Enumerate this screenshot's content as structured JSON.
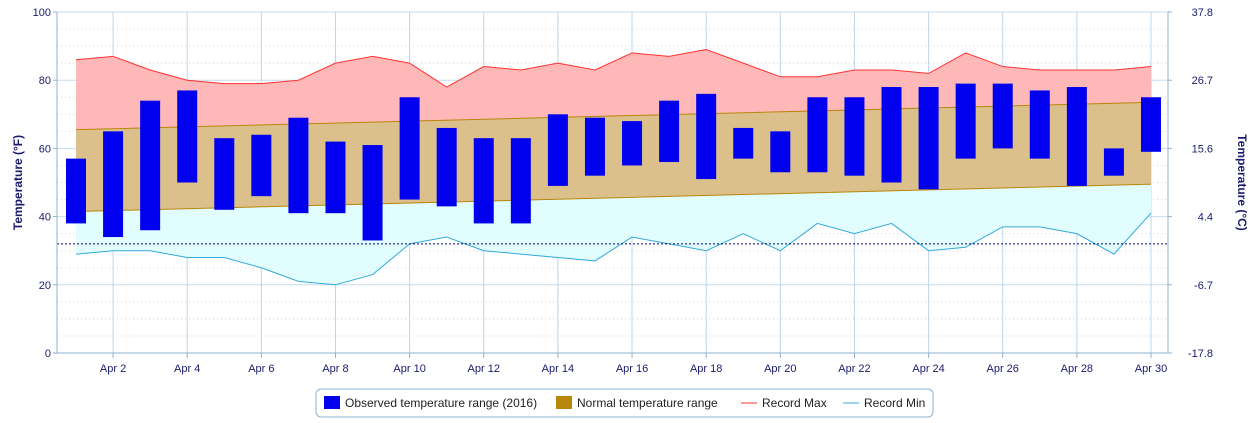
{
  "chart_data": {
    "type": "bar",
    "title": "",
    "xlabel": "",
    "ylabel_left": "Temperature (°F)",
    "ylabel_right": "Temperature (°C)",
    "ylim": [
      0,
      100
    ],
    "y_ticks": [
      "0",
      "20",
      "40",
      "60",
      "80",
      "100"
    ],
    "y2_ticks": [
      "-17.8",
      "-6.7",
      "4.4",
      "15.6",
      "26.7",
      "37.8"
    ],
    "x_ticks": [
      "Apr 2",
      "Apr 4",
      "Apr 6",
      "Apr 8",
      "Apr 10",
      "Apr 12",
      "Apr 14",
      "Apr 16",
      "Apr 18",
      "Apr 20",
      "Apr 22",
      "Apr 24",
      "Apr 26",
      "Apr 28",
      "Apr 30"
    ],
    "days": [
      1,
      2,
      3,
      4,
      5,
      6,
      7,
      8,
      9,
      10,
      11,
      12,
      13,
      14,
      15,
      16,
      17,
      18,
      19,
      20,
      21,
      22,
      23,
      24,
      25,
      26,
      27,
      28,
      29,
      30
    ],
    "freezing_line_f": 32,
    "grid": true,
    "legend_position": "bottom",
    "series": [
      {
        "name": "Observed temperature range (2016)",
        "kind": "range-bar",
        "color": "#0000ee",
        "low": [
          38,
          34,
          36,
          50,
          42,
          46,
          41,
          41,
          33,
          45,
          43,
          38,
          38,
          49,
          52,
          55,
          56,
          51,
          57,
          53,
          53,
          52,
          50,
          48,
          57,
          60,
          57,
          49,
          52,
          59
        ],
        "high": [
          57,
          65,
          74,
          77,
          63,
          64,
          69,
          62,
          61,
          75,
          66,
          63,
          63,
          70,
          69,
          68,
          74,
          76,
          66,
          65,
          75,
          75,
          78,
          78,
          79,
          79,
          77,
          78,
          60,
          75
        ]
      },
      {
        "name": "Normal temperature range",
        "kind": "range-area",
        "color": "#b8860b",
        "low_start": 41.5,
        "low_end": 49.5,
        "high_start": 65.5,
        "high_end": 73.5
      },
      {
        "name": "Record Max",
        "kind": "line",
        "color": "#ff3333",
        "values": [
          86,
          87,
          83,
          80,
          79,
          79,
          80,
          85,
          87,
          85,
          78,
          84,
          83,
          85,
          83,
          88,
          87,
          89,
          85,
          81,
          81,
          83,
          83,
          82,
          88,
          84,
          83,
          83,
          83,
          84
        ]
      },
      {
        "name": "Record Min",
        "kind": "line",
        "color": "#33aadd",
        "values": [
          29,
          30,
          30,
          28,
          28,
          25,
          21,
          20,
          23,
          32,
          34,
          30,
          29,
          28,
          27,
          34,
          32,
          30,
          35,
          30,
          38,
          35,
          38,
          30,
          31,
          37,
          37,
          35,
          29,
          41
        ]
      }
    ]
  }
}
